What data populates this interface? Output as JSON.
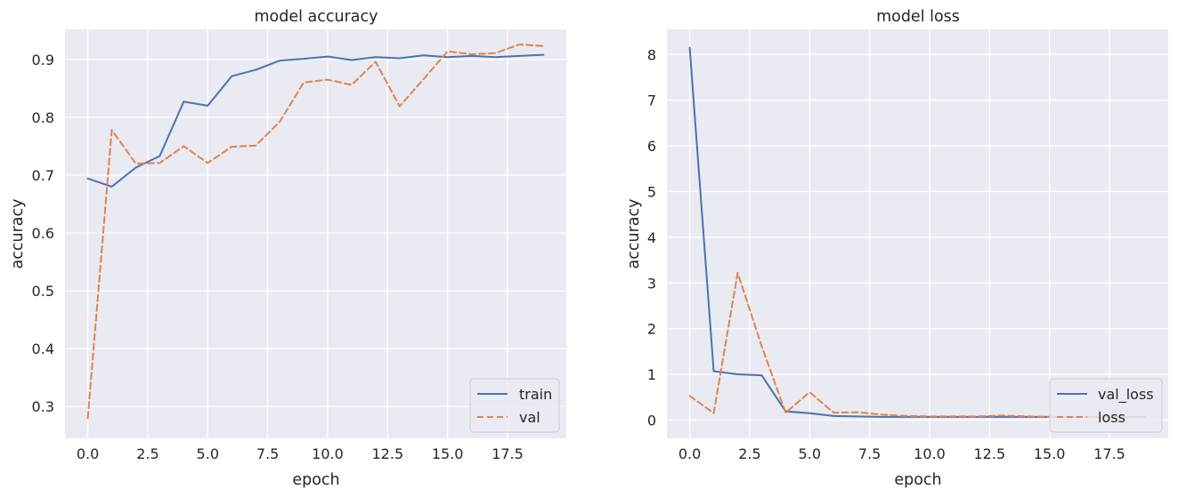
{
  "chart_data": [
    {
      "type": "line",
      "title": "model accuracy",
      "xlabel": "epoch",
      "ylabel": "accuracy",
      "xlim": [
        -0.95,
        19.95
      ],
      "ylim": [
        0.245,
        0.952
      ],
      "xticks": [
        0.0,
        2.5,
        5.0,
        7.5,
        10.0,
        12.5,
        15.0,
        17.5
      ],
      "xtick_labels": [
        "0.0",
        "2.5",
        "5.0",
        "7.5",
        "10.0",
        "12.5",
        "15.0",
        "17.5"
      ],
      "yticks": [
        0.3,
        0.4,
        0.5,
        0.6,
        0.7,
        0.8,
        0.9
      ],
      "ytick_labels": [
        "0.3",
        "0.4",
        "0.5",
        "0.6",
        "0.7",
        "0.8",
        "0.9"
      ],
      "grid": true,
      "legend_position": "lower-right",
      "x": [
        0,
        1,
        2,
        3,
        4,
        5,
        6,
        7,
        8,
        9,
        10,
        11,
        12,
        13,
        14,
        15,
        16,
        17,
        18,
        19
      ],
      "series": [
        {
          "name": "train",
          "color": "#4c72b0",
          "dash": "solid",
          "values": [
            0.694,
            0.68,
            0.713,
            0.733,
            0.827,
            0.82,
            0.871,
            0.882,
            0.898,
            0.901,
            0.905,
            0.899,
            0.904,
            0.902,
            0.907,
            0.904,
            0.906,
            0.904,
            0.906,
            0.908
          ]
        },
        {
          "name": "val",
          "color": "#dd8452",
          "dash": "dashed",
          "values": [
            0.28,
            0.778,
            0.72,
            0.721,
            0.75,
            0.721,
            0.749,
            0.751,
            0.792,
            0.86,
            0.865,
            0.856,
            0.896,
            0.819,
            0.866,
            0.914,
            0.909,
            0.911,
            0.926,
            0.923
          ]
        }
      ]
    },
    {
      "type": "line",
      "title": "model loss",
      "xlabel": "epoch",
      "ylabel": "accuracy",
      "xlim": [
        -0.95,
        19.95
      ],
      "ylim": [
        -0.4,
        8.55
      ],
      "xticks": [
        0.0,
        2.5,
        5.0,
        7.5,
        10.0,
        12.5,
        15.0,
        17.5
      ],
      "xtick_labels": [
        "0.0",
        "2.5",
        "5.0",
        "7.5",
        "10.0",
        "12.5",
        "15.0",
        "17.5"
      ],
      "yticks": [
        0,
        1,
        2,
        3,
        4,
        5,
        6,
        7,
        8
      ],
      "ytick_labels": [
        "0",
        "1",
        "2",
        "3",
        "4",
        "5",
        "6",
        "7",
        "8"
      ],
      "grid": true,
      "legend_position": "lower-right",
      "x": [
        0,
        1,
        2,
        3,
        4,
        5,
        6,
        7,
        8,
        9,
        10,
        11,
        12,
        13,
        14,
        15,
        16,
        17,
        18,
        19
      ],
      "series": [
        {
          "name": "val_loss",
          "color": "#4c72b0",
          "dash": "solid",
          "values": [
            8.15,
            1.07,
            1.0,
            0.98,
            0.19,
            0.15,
            0.09,
            0.08,
            0.07,
            0.07,
            0.07,
            0.07,
            0.07,
            0.07,
            0.07,
            0.07,
            0.07,
            0.07,
            0.07,
            0.07
          ]
        },
        {
          "name": "loss",
          "color": "#dd8452",
          "dash": "dashed",
          "values": [
            0.53,
            0.15,
            3.22,
            1.62,
            0.16,
            0.61,
            0.16,
            0.17,
            0.12,
            0.09,
            0.08,
            0.08,
            0.08,
            0.1,
            0.08,
            0.07,
            0.07,
            0.06,
            0.06,
            0.06
          ]
        }
      ]
    }
  ]
}
